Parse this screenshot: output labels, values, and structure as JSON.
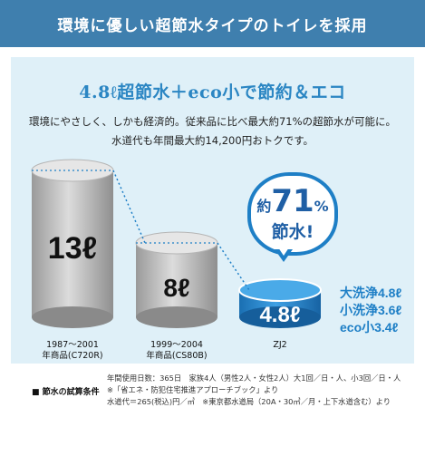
{
  "header": {
    "title": "環境に優しい超節水タイプのトイレを採用"
  },
  "headline": "4.8ℓ超節水＋eco小で節約＆エコ",
  "description": [
    "環境にやさしく、しかも経済的。従来品に比べ最大約71%の超節水が可能に。",
    "水道代も年間最大約14,200円おトクです。"
  ],
  "bubble": {
    "prefix": "約",
    "percent_value": "71",
    "percent_sign": "%",
    "bottom": "節水!"
  },
  "cylinders": [
    {
      "value": "13ℓ",
      "period": "1987〜2001",
      "model": "年商品(C720R)",
      "color": "#c9c9c9"
    },
    {
      "value": "8ℓ",
      "period": "1999〜2004",
      "model": "年商品(CS80B)",
      "color": "#c9c9c9"
    },
    {
      "value": "4.8ℓ",
      "period": "",
      "model": "ZJ2",
      "color": "#1e7fc6"
    }
  ],
  "wash_volumes": [
    "大洗浄4.8ℓ",
    "小洗浄3.6ℓ",
    "eco小3.4ℓ"
  ],
  "conditions": {
    "label": "■ 節水の試算条件",
    "lines": [
      "年間使用日数：365日　家族4人（男性2人・女性2人）大1回／日・人、小3回／日・人",
      "※「省エネ・防犯住宅推進アプローチブック」より",
      "水道代＝265(税込)円／㎥　※東京都水道局（20A・30㎥／月・上下水道含む）より"
    ]
  }
}
